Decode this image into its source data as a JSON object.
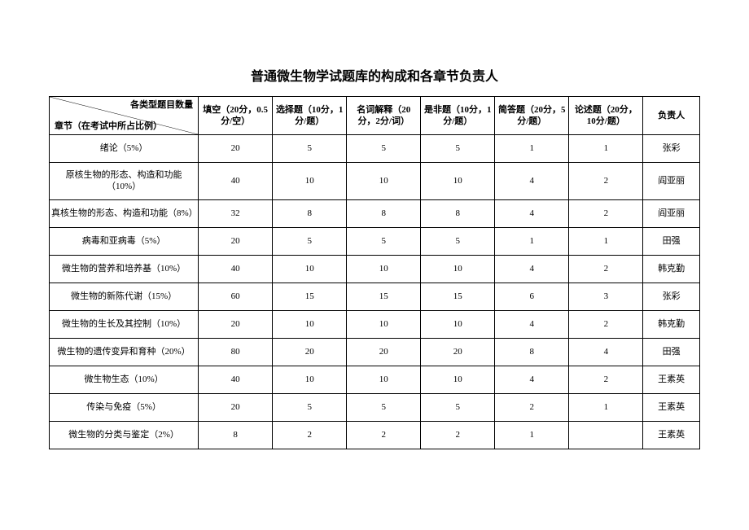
{
  "title": "普通微生物学试题库的构成和各章节负责人",
  "header": {
    "diag_top": "各类型题目数量",
    "diag_bottom": "章节（在考试中所占比例）",
    "cols": [
      "填空（20分，0.5分/空）",
      "选择题（10分，1分/题）",
      "名词解释（20分，2分/词）",
      "是非题（10分，1分/题）",
      "简答题（20分，5分/题）",
      "论述题（20分，10分/题）",
      "负责人"
    ]
  },
  "rows": [
    {
      "chapter": "绪论（5%）",
      "c1": "20",
      "c2": "5",
      "c3": "5",
      "c4": "5",
      "c5": "1",
      "c6": "1",
      "person": "张彩"
    },
    {
      "chapter": "原核生物的形态、构造和功能（10%）",
      "c1": "40",
      "c2": "10",
      "c3": "10",
      "c4": "10",
      "c5": "4",
      "c6": "2",
      "person": "阎亚丽"
    },
    {
      "chapter": "真核生物的形态、构造和功能（8%）",
      "c1": "32",
      "c2": "8",
      "c3": "8",
      "c4": "8",
      "c5": "4",
      "c6": "2",
      "person": "阎亚丽"
    },
    {
      "chapter": "病毒和亚病毒（5%）",
      "c1": "20",
      "c2": "5",
      "c3": "5",
      "c4": "5",
      "c5": "1",
      "c6": "1",
      "person": "田强"
    },
    {
      "chapter": "微生物的营养和培养基（10%）",
      "c1": "40",
      "c2": "10",
      "c3": "10",
      "c4": "10",
      "c5": "4",
      "c6": "2",
      "person": "韩克勤"
    },
    {
      "chapter": "微生物的新陈代谢（15%）",
      "c1": "60",
      "c2": "15",
      "c3": "15",
      "c4": "15",
      "c5": "6",
      "c6": "3",
      "person": "张彩"
    },
    {
      "chapter": "微生物的生长及其控制（10%）",
      "c1": "20",
      "c2": "10",
      "c3": "10",
      "c4": "10",
      "c5": "4",
      "c6": "2",
      "person": "韩克勤"
    },
    {
      "chapter": "微生物的遗传变异和育种（20%）",
      "c1": "80",
      "c2": "20",
      "c3": "20",
      "c4": "20",
      "c5": "8",
      "c6": "4",
      "person": "田强"
    },
    {
      "chapter": "微生物生态（10%）",
      "c1": "40",
      "c2": "10",
      "c3": "10",
      "c4": "10",
      "c5": "4",
      "c6": "2",
      "person": "王素英"
    },
    {
      "chapter": "传染与免疫（5%）",
      "c1": "20",
      "c2": "5",
      "c3": "5",
      "c4": "5",
      "c5": "2",
      "c6": "1",
      "person": "王素英"
    },
    {
      "chapter": "微生物的分类与鉴定（2%）",
      "c1": "8",
      "c2": "2",
      "c3": "2",
      "c4": "2",
      "c5": "1",
      "c6": "",
      "person": "王素英"
    }
  ]
}
